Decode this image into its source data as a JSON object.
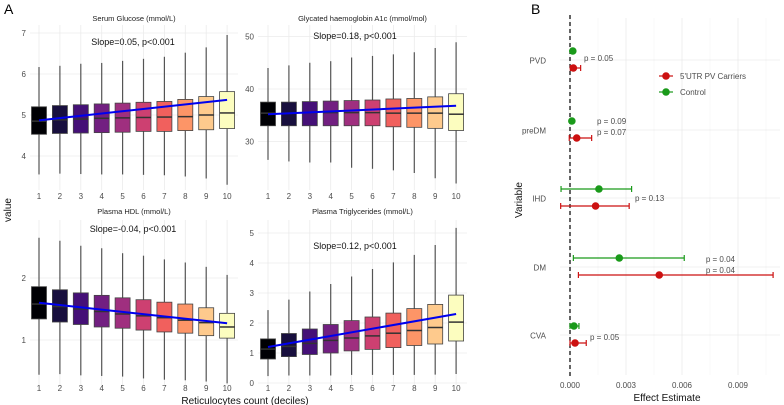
{
  "panel_labels": {
    "a": "A",
    "b": "B"
  },
  "chart_data": [
    {
      "type": "box",
      "title": "Serum Glucose (mmol/L)",
      "annotation": "Slope=0.05, p<0.001",
      "categories": [
        "1",
        "2",
        "3",
        "4",
        "5",
        "6",
        "7",
        "8",
        "9",
        "10"
      ],
      "yticks": [
        4,
        5,
        6,
        7
      ],
      "q3": [
        5.2,
        5.23,
        5.25,
        5.27,
        5.29,
        5.31,
        5.33,
        5.38,
        5.45,
        5.57
      ],
      "median": [
        4.85,
        4.88,
        4.9,
        4.92,
        4.93,
        4.94,
        4.95,
        4.96,
        5.0,
        5.05
      ],
      "q1": [
        4.53,
        4.55,
        4.56,
        4.57,
        4.58,
        4.6,
        4.6,
        4.62,
        4.64,
        4.67
      ],
      "max": [
        6.17,
        6.2,
        6.25,
        6.27,
        6.32,
        6.37,
        6.42,
        6.52,
        6.65,
        6.95
      ],
      "min": [
        3.55,
        3.57,
        3.56,
        3.55,
        3.55,
        3.54,
        3.53,
        3.5,
        3.45,
        3.3
      ],
      "fit": [
        4.87,
        5.37
      ]
    },
    {
      "type": "box",
      "title": "Glycated haemoglobin A1c (mmol/mol)",
      "annotation": "Slope=0.18, p<0.001",
      "categories": [
        "1",
        "2",
        "3",
        "4",
        "5",
        "6",
        "7",
        "8",
        "9",
        "10"
      ],
      "yticks": [
        30,
        40,
        50
      ],
      "q3": [
        37.5,
        37.5,
        37.6,
        37.7,
        37.8,
        37.9,
        38.1,
        38.2,
        38.5,
        39.1
      ],
      "median": [
        35.4,
        35.4,
        35.5,
        35.5,
        35.5,
        35.5,
        35.4,
        35.4,
        35.4,
        35.2
      ],
      "q1": [
        33,
        33,
        33,
        33,
        33,
        33,
        32.8,
        32.7,
        32.5,
        32.1
      ],
      "max": [
        44,
        44.5,
        45,
        45.3,
        46,
        46.3,
        46.6,
        47,
        47.8,
        48.9
      ],
      "min": [
        26.5,
        26.2,
        26,
        26,
        25,
        24.8,
        24.5,
        24,
        23,
        22
      ],
      "fit": [
        35.2,
        36.8
      ]
    },
    {
      "type": "box",
      "title": "Plasma HDL (mmol/L)",
      "annotation": "Slope=-0.04, p<0.001",
      "categories": [
        "1",
        "2",
        "3",
        "4",
        "5",
        "6",
        "7",
        "8",
        "9",
        "10"
      ],
      "yticks": [
        1,
        2
      ],
      "q3": [
        1.86,
        1.81,
        1.76,
        1.72,
        1.68,
        1.65,
        1.61,
        1.58,
        1.52,
        1.43
      ],
      "median": [
        1.58,
        1.54,
        1.5,
        1.46,
        1.42,
        1.39,
        1.36,
        1.32,
        1.28,
        1.21
      ],
      "q1": [
        1.34,
        1.29,
        1.25,
        1.21,
        1.19,
        1.16,
        1.13,
        1.11,
        1.07,
        1.03
      ],
      "max": [
        2.65,
        2.6,
        2.52,
        2.48,
        2.4,
        2.36,
        2.3,
        2.25,
        2.18,
        2.05
      ],
      "min": [
        0.44,
        0.45,
        0.43,
        0.42,
        0.41,
        0.38,
        0.36,
        0.35,
        0.33,
        0.3
      ],
      "fit": [
        1.6,
        1.27
      ]
    },
    {
      "type": "box",
      "title": "Plasma Triglycerides (mmol/L)",
      "annotation": "Slope=0.12, p<0.001",
      "categories": [
        "1",
        "2",
        "3",
        "4",
        "5",
        "6",
        "7",
        "8",
        "9",
        "10"
      ],
      "yticks": [
        0,
        1,
        2,
        3,
        4,
        5
      ],
      "q3": [
        1.47,
        1.65,
        1.8,
        1.95,
        2.08,
        2.2,
        2.33,
        2.48,
        2.62,
        2.93
      ],
      "median": [
        1.13,
        1.22,
        1.32,
        1.42,
        1.5,
        1.57,
        1.66,
        1.75,
        1.85,
        2.03
      ],
      "q1": [
        0.8,
        0.88,
        0.95,
        1.0,
        1.07,
        1.12,
        1.18,
        1.25,
        1.3,
        1.4
      ],
      "max": [
        2.43,
        2.78,
        3.05,
        3.3,
        3.55,
        3.8,
        4.02,
        4.27,
        4.6,
        5.17
      ],
      "min": [
        0.23,
        0.25,
        0.25,
        0.25,
        0.27,
        0.27,
        0.27,
        0.27,
        0.28,
        0.3
      ],
      "fit": [
        1.2,
        2.3
      ]
    },
    {
      "type": "forest",
      "xlabel": "Effect Estimate",
      "ylabel": "Variable",
      "xticks": [
        "0.000",
        "0.003",
        "0.006",
        "0.009"
      ],
      "xtick_values": [
        0,
        0.003,
        0.006,
        0.009
      ],
      "reference_line": 0,
      "categories": [
        "PVD",
        "preDM",
        "IHD",
        "DM",
        "CVA"
      ],
      "series": [
        {
          "name": "5'UTR PV Carriers",
          "color": "#cc1111",
          "est": [
            0.00018,
            0.00036,
            0.00137,
            0.00478,
            0.00027
          ],
          "lo": [
            2e-05,
            -4e-05,
            -0.0005,
            0.00045,
            0.0
          ],
          "hi": [
            0.00057,
            0.00116,
            0.00317,
            0.01088,
            0.00087
          ]
        },
        {
          "name": "Control",
          "color": "#1a9a1a",
          "est": [
            0.00015,
            0.0001,
            0.00155,
            0.00264,
            0.00021
          ],
          "lo": [
            0.0001,
            5e-05,
            -0.00048,
            0.00018,
            0.0
          ],
          "hi": [
            0.0002,
            0.00015,
            0.0033,
            0.00612,
            0.00048
          ]
        }
      ],
      "pvalues": [
        {
          "category": "PVD",
          "labels": [
            {
              "text": "p = 0.05",
              "color": "#111111"
            }
          ]
        },
        {
          "category": "preDM",
          "labels": [
            {
              "text": "p = 0.09",
              "color": "#2222cc"
            },
            {
              "text": "p = 0.07",
              "color": "#111111"
            }
          ]
        },
        {
          "category": "IHD",
          "labels": [
            {
              "text": "p = 0.13",
              "color": "#111111"
            }
          ]
        },
        {
          "category": "DM",
          "labels": [
            {
              "text": "p = 0.04",
              "color": "#2222cc"
            },
            {
              "text": "p = 0.04",
              "color": "#111111"
            }
          ]
        },
        {
          "category": "CVA",
          "labels": [
            {
              "text": "p = 0.05",
              "color": "#111111"
            }
          ]
        }
      ],
      "legend_position": "top-right"
    }
  ],
  "shared": {
    "ylabel": "value",
    "xlabel": "Reticulocytes count (deciles)",
    "fit_color": "#0000ee",
    "palette": [
      "#000004",
      "#180f3e",
      "#451077",
      "#721f81",
      "#9f2f7f",
      "#cd4071",
      "#f1605d",
      "#fd9567",
      "#feca8d",
      "#fcfdbf"
    ]
  }
}
